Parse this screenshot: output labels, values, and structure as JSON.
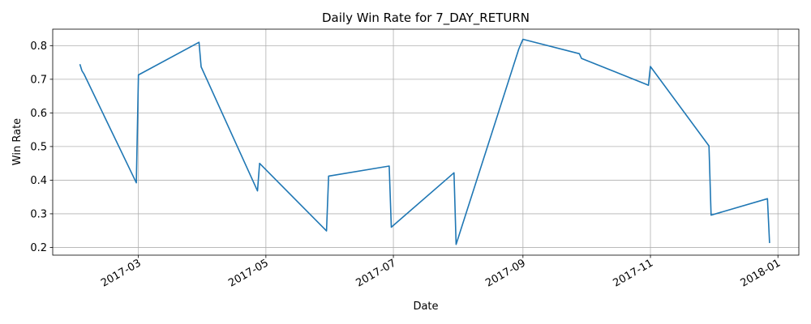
{
  "chart_data": {
    "type": "line",
    "title": "Daily Win Rate for 7_DAY_RETURN",
    "xlabel": "Date",
    "ylabel": "Win Rate",
    "grid": true,
    "xlim": [
      "2017-01-19",
      "2018-01-11"
    ],
    "ylim": [
      0.177,
      0.849
    ],
    "x_ticks": [
      "2017-03-01",
      "2017-05-01",
      "2017-07-01",
      "2017-09-01",
      "2017-11-01",
      "2018-01-01"
    ],
    "x_tick_labels": [
      "2017-03",
      "2017-05",
      "2017-07",
      "2017-09",
      "2017-11",
      "2018-01"
    ],
    "y_ticks": [
      0.2,
      0.3,
      0.4,
      0.5,
      0.6,
      0.7,
      0.8
    ],
    "y_tick_labels": [
      "0.2",
      "0.3",
      "0.4",
      "0.5",
      "0.6",
      "0.7",
      "0.8"
    ],
    "series": [
      {
        "name": "Win Rate",
        "color": "#1f77b4",
        "x": [
          "2017-02-01",
          "2017-02-02",
          "2017-02-03",
          "2017-02-28",
          "2017-03-01",
          "2017-03-30",
          "2017-03-31",
          "2017-04-27",
          "2017-04-28",
          "2017-05-30",
          "2017-05-31",
          "2017-06-29",
          "2017-06-30",
          "2017-07-30",
          "2017-07-31",
          "2017-08-30",
          "2017-08-31",
          "2017-09-01",
          "2017-09-28",
          "2017-09-29",
          "2017-10-30",
          "2017-10-31",
          "2017-11-01",
          "2017-11-29",
          "2017-11-30",
          "2017-12-27",
          "2017-12-28"
        ],
        "values": [
          0.745,
          0.725,
          0.715,
          0.392,
          0.713,
          0.81,
          0.737,
          0.368,
          0.45,
          0.249,
          0.412,
          0.442,
          0.26,
          0.422,
          0.209,
          0.79,
          0.805,
          0.819,
          0.776,
          0.762,
          0.685,
          0.682,
          0.738,
          0.502,
          0.296,
          0.345,
          0.213
        ]
      }
    ]
  }
}
